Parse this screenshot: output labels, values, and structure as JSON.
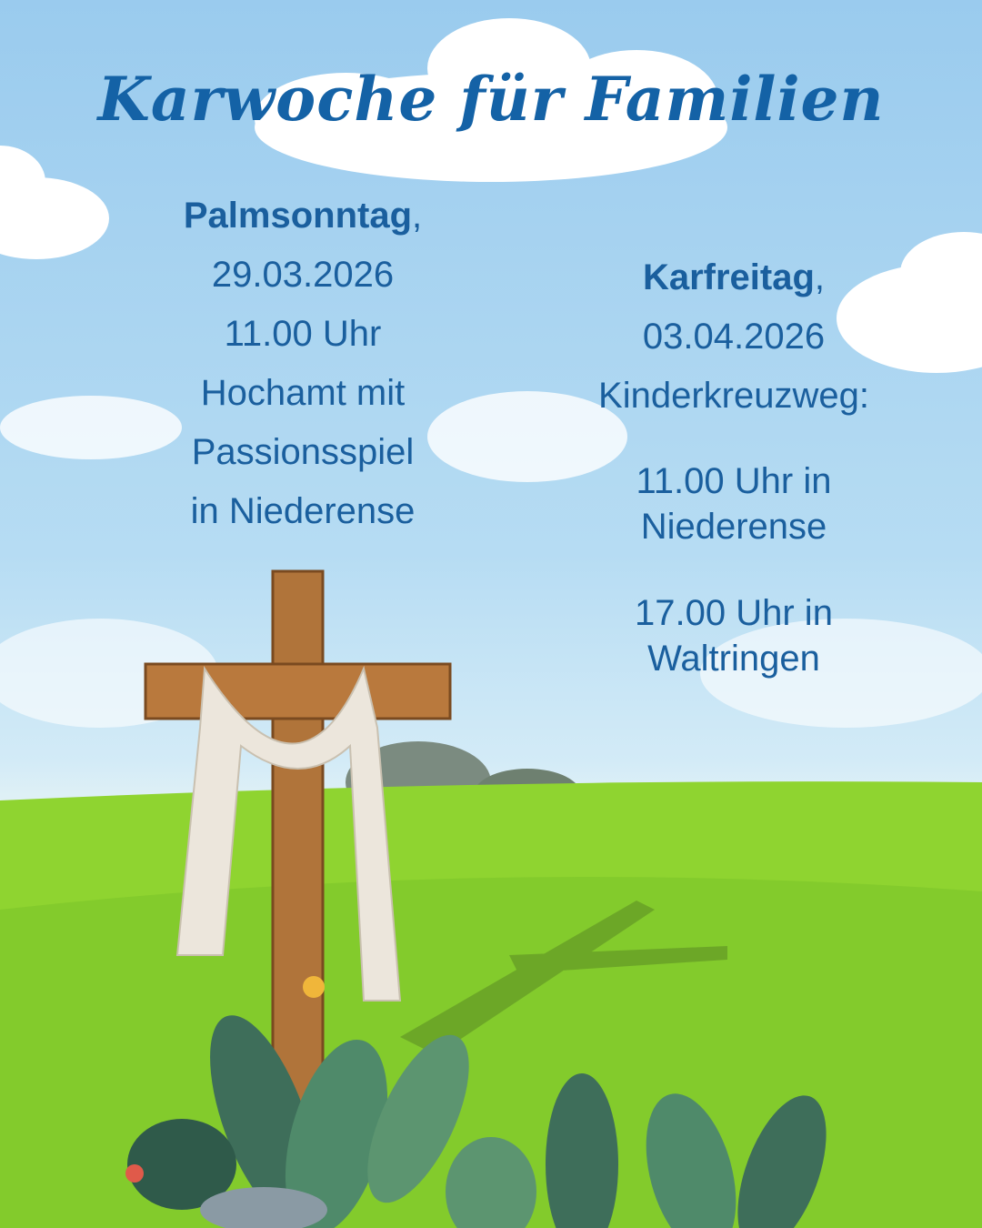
{
  "title": "Karwoche für Familien",
  "palmsonntag": {
    "day": "Palmsonntag",
    "comma": ",",
    "date": "29.03.2026",
    "time": "11.00 Uhr",
    "line1": "Hochamt mit",
    "line2": "Passionsspiel",
    "line3": "in Niederense"
  },
  "karfreitag": {
    "day": "Karfreitag",
    "comma": ",",
    "date": "03.04.2026",
    "label": "Kinderkreuzweg:",
    "slot1_time": "11.00 Uhr in",
    "slot1_place": "Niederense",
    "slot2_time": "17.00 Uhr in",
    "slot2_place": "Waltringen"
  },
  "colors": {
    "text": "#1a5f9e",
    "title": "#1462a6",
    "grass": "#8fd430",
    "sky": "#9acbee"
  }
}
